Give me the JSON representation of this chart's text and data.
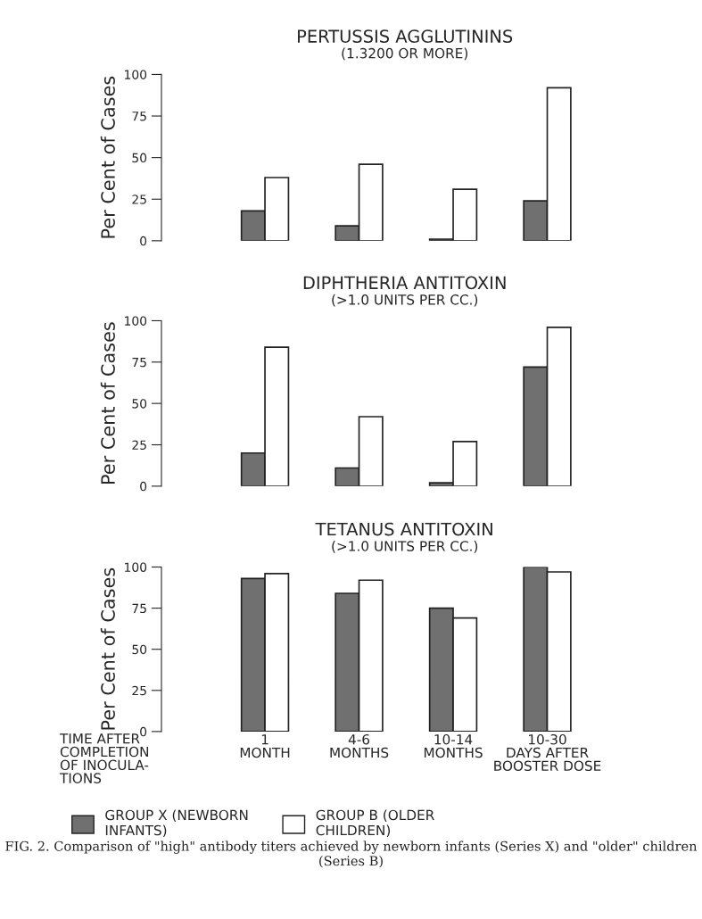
{
  "chart_data": [
    {
      "type": "bar",
      "title": "PERTUSSIS AGGLUTININS",
      "subtitle": "(1.3200 OR MORE)",
      "ylabel": "Per Cent of Cases",
      "categories": [
        null,
        null,
        null,
        null
      ],
      "series": [
        {
          "color": "#707070",
          "values": [
            18,
            9,
            1,
            24
          ]
        },
        {
          "color": "#ffffff",
          "values": [
            38,
            46,
            31,
            92
          ]
        }
      ],
      "ylim": [
        0,
        100
      ],
      "yticks": [
        0,
        25,
        50,
        75,
        100
      ],
      "tick_labels": "y",
      "grid": false
    },
    {
      "type": "bar",
      "title": "DIPHTHERIA ANTITOXIN",
      "subtitle": "(>1.0 UNITS PER CC.)",
      "ylabel": "Per Cent of Cases",
      "categories": [
        null,
        null,
        null,
        null
      ],
      "series": [
        {
          "color": "#707070",
          "values": [
            20,
            11,
            2,
            72
          ]
        },
        {
          "color": "#ffffff",
          "values": [
            84,
            42,
            27,
            96
          ]
        }
      ],
      "ylim": [
        0,
        100
      ],
      "yticks": [
        0,
        25,
        50,
        75,
        100
      ],
      "tick_labels": "y",
      "grid": false
    },
    {
      "type": "bar",
      "title": "TETANUS ANTITOXIN",
      "subtitle": "(>1.0 UNITS PER CC.)",
      "ylabel": "Per Cent of Cases",
      "xlabel": "TIME AFTER\nCOMPLETION\nOF INOCULA-\nTIONS",
      "categories": [
        "1\nMONTH",
        "4-6\nMONTHS",
        "10-14\nMONTHS",
        "10-30\nDAYS AFTER\nBOOSTER DOSE"
      ],
      "series": [
        {
          "name": "GROUP X (NEWBORN\nINFANTS)",
          "color": "#707070",
          "values": [
            93,
            84,
            75,
            100
          ]
        },
        {
          "name": "GROUP B (OLDER\nCHILDREN)",
          "color": "#ffffff",
          "values": [
            96,
            92,
            69,
            97
          ]
        }
      ],
      "ylim": [
        0,
        100
      ],
      "yticks": [
        0,
        25,
        50,
        75,
        100
      ],
      "grid": false,
      "legend": "bottom",
      "annotations": [
        "FIG. 2. Comparison of \"high\" antibody titers achieved by newborn infants (Series X) and \"older\" children (Series B)"
      ]
    }
  ]
}
